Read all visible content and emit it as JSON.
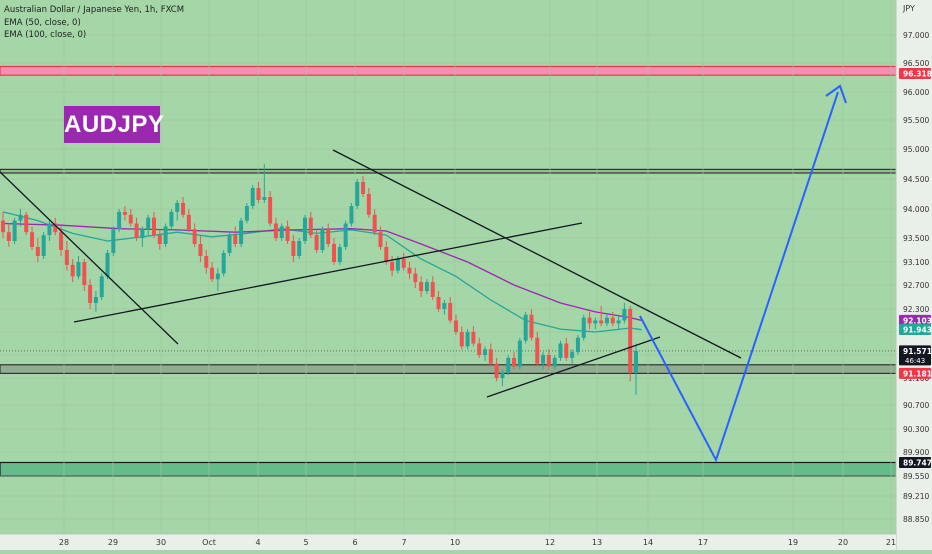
{
  "header": {
    "symbol_line": "Australian Dollar / Japanese Yen, 1h, FXCM",
    "ema1_line": "EMA (50, close, 0)",
    "ema2_line": "EMA (100, close, 0)"
  },
  "badge_text": "AUDJPY",
  "chart_data": {
    "type": "candlestick",
    "currency_label": "JPY",
    "y_ticks": [
      "97.000",
      "96.500",
      "96.000",
      "95.500",
      "95.000",
      "94.500",
      "94.000",
      "93.500",
      "93.100",
      "92.700",
      "92.300",
      "91.900",
      "91.500",
      "91.100",
      "90.700",
      "90.300",
      "89.900",
      "89.550",
      "89.210",
      "88.850"
    ],
    "x_ticks": [
      "28",
      "29",
      "30",
      "Oct",
      "4",
      "5",
      "6",
      "7",
      "10",
      "12",
      "13",
      "14",
      "17",
      "19",
      "20",
      "21"
    ],
    "price_labels": [
      {
        "text": "96.318",
        "price": 96.318,
        "color": "#f23645"
      },
      {
        "text": "92.103",
        "price": 92.103,
        "color": "#9c27b0"
      },
      {
        "text": "91.943",
        "price": 91.943,
        "color": "#26a69a"
      },
      {
        "text": "91.571",
        "sub": "46:43",
        "price": 91.571,
        "color": "#131722"
      },
      {
        "text": "91.181",
        "price": 91.181,
        "color": "#f23645"
      },
      {
        "text": "89.747",
        "price": 89.747,
        "color": "#131722"
      }
    ],
    "zones": [
      {
        "name": "resistance",
        "from": 96.29,
        "to": 96.44,
        "color": "#f48fb1",
        "border": "#f23645"
      },
      {
        "name": "upper-range",
        "from": 94.6,
        "to": 94.66,
        "color": "#8fbf8f",
        "border": "#333333"
      },
      {
        "name": "support",
        "from": 91.18,
        "to": 91.33,
        "color": "#8fae8f",
        "border": "#333333"
      },
      {
        "name": "demand",
        "from": 89.55,
        "to": 89.747,
        "color": "#66bb8a",
        "border": "#131722"
      }
    ],
    "series": [
      {
        "type": "candles",
        "up_color": "#26a69a",
        "down_color": "#ef5350",
        "ohlc": [
          [
            93.8,
            93.95,
            93.5,
            93.6
          ],
          [
            93.6,
            93.75,
            93.35,
            93.45
          ],
          [
            93.45,
            93.85,
            93.4,
            93.8
          ],
          [
            93.8,
            94.0,
            93.7,
            93.9
          ],
          [
            93.9,
            93.95,
            93.55,
            93.6
          ],
          [
            93.6,
            93.7,
            93.3,
            93.35
          ],
          [
            93.35,
            93.5,
            93.1,
            93.2
          ],
          [
            93.2,
            93.6,
            93.15,
            93.55
          ],
          [
            93.55,
            93.8,
            93.45,
            93.75
          ],
          [
            93.75,
            93.85,
            93.55,
            93.6
          ],
          [
            93.6,
            93.7,
            93.2,
            93.3
          ],
          [
            93.3,
            93.45,
            92.95,
            93.05
          ],
          [
            93.05,
            93.15,
            92.75,
            92.85
          ],
          [
            92.85,
            93.2,
            92.8,
            93.1
          ],
          [
            93.1,
            93.15,
            92.6,
            92.7
          ],
          [
            92.7,
            92.8,
            92.3,
            92.4
          ],
          [
            92.4,
            92.6,
            92.25,
            92.5
          ],
          [
            92.5,
            92.9,
            92.45,
            92.85
          ],
          [
            92.85,
            93.3,
            92.8,
            93.25
          ],
          [
            93.25,
            93.7,
            93.2,
            93.65
          ],
          [
            93.65,
            94.0,
            93.6,
            93.95
          ],
          [
            93.95,
            94.05,
            93.8,
            93.9
          ],
          [
            93.9,
            94.0,
            93.7,
            93.75
          ],
          [
            93.75,
            93.85,
            93.45,
            93.5
          ],
          [
            93.5,
            93.7,
            93.35,
            93.65
          ],
          [
            93.65,
            93.9,
            93.55,
            93.85
          ],
          [
            93.85,
            93.95,
            93.5,
            93.55
          ],
          [
            93.55,
            93.65,
            93.3,
            93.4
          ],
          [
            93.4,
            93.75,
            93.35,
            93.7
          ],
          [
            93.7,
            94.0,
            93.65,
            93.95
          ],
          [
            93.95,
            94.15,
            93.8,
            94.1
          ],
          [
            94.1,
            94.2,
            93.85,
            93.9
          ],
          [
            93.9,
            94.0,
            93.6,
            93.65
          ],
          [
            93.65,
            93.75,
            93.35,
            93.4
          ],
          [
            93.4,
            93.55,
            93.1,
            93.2
          ],
          [
            93.2,
            93.3,
            92.9,
            93.0
          ],
          [
            93.0,
            93.1,
            92.75,
            92.8
          ],
          [
            92.8,
            93.0,
            92.6,
            92.9
          ],
          [
            92.9,
            93.3,
            92.85,
            93.25
          ],
          [
            93.25,
            93.6,
            93.2,
            93.55
          ],
          [
            93.55,
            93.7,
            93.35,
            93.4
          ],
          [
            93.4,
            93.85,
            93.35,
            93.8
          ],
          [
            93.8,
            94.1,
            93.75,
            94.05
          ],
          [
            94.05,
            94.4,
            94.0,
            94.35
          ],
          [
            94.35,
            94.45,
            94.1,
            94.15
          ],
          [
            94.15,
            94.75,
            94.1,
            94.2
          ],
          [
            94.2,
            94.3,
            93.7,
            93.75
          ],
          [
            93.75,
            93.85,
            93.45,
            93.5
          ],
          [
            93.5,
            93.75,
            93.45,
            93.7
          ],
          [
            93.7,
            93.8,
            93.4,
            93.45
          ],
          [
            93.45,
            93.55,
            93.1,
            93.2
          ],
          [
            93.2,
            93.5,
            93.15,
            93.45
          ],
          [
            93.45,
            93.9,
            93.4,
            93.85
          ],
          [
            93.85,
            93.95,
            93.5,
            93.55
          ],
          [
            93.55,
            93.65,
            93.25,
            93.3
          ],
          [
            93.3,
            93.7,
            93.25,
            93.65
          ],
          [
            93.65,
            93.75,
            93.35,
            93.4
          ],
          [
            93.4,
            93.5,
            93.05,
            93.1
          ],
          [
            93.1,
            93.4,
            93.05,
            93.35
          ],
          [
            93.35,
            93.8,
            93.3,
            93.75
          ],
          [
            93.75,
            94.1,
            93.7,
            94.05
          ],
          [
            94.05,
            94.5,
            94.0,
            94.45
          ],
          [
            94.45,
            94.55,
            94.2,
            94.25
          ],
          [
            94.25,
            94.35,
            93.85,
            93.9
          ],
          [
            93.9,
            94.0,
            93.55,
            93.6
          ],
          [
            93.6,
            93.7,
            93.3,
            93.35
          ],
          [
            93.35,
            93.45,
            93.05,
            93.1
          ],
          [
            93.1,
            93.2,
            92.85,
            92.95
          ],
          [
            92.95,
            93.2,
            92.9,
            93.15
          ],
          [
            93.15,
            93.25,
            92.95,
            93.0
          ],
          [
            93.0,
            93.1,
            92.8,
            92.9
          ],
          [
            92.9,
            93.0,
            92.65,
            92.75
          ],
          [
            92.75,
            92.85,
            92.5,
            92.6
          ],
          [
            92.6,
            92.8,
            92.55,
            92.75
          ],
          [
            92.75,
            92.85,
            92.45,
            92.5
          ],
          [
            92.5,
            92.6,
            92.25,
            92.3
          ],
          [
            92.3,
            92.45,
            92.2,
            92.4
          ],
          [
            92.4,
            92.5,
            92.05,
            92.1
          ],
          [
            92.1,
            92.2,
            91.85,
            91.9
          ],
          [
            91.9,
            92.0,
            91.6,
            91.65
          ],
          [
            91.65,
            91.95,
            91.6,
            91.9
          ],
          [
            91.9,
            92.0,
            91.65,
            91.7
          ],
          [
            91.7,
            91.8,
            91.45,
            91.5
          ],
          [
            91.5,
            91.65,
            91.4,
            91.6
          ],
          [
            91.6,
            91.7,
            91.3,
            91.35
          ],
          [
            91.35,
            91.45,
            91.05,
            91.1
          ],
          [
            91.1,
            91.25,
            90.98,
            91.2
          ],
          [
            91.2,
            91.5,
            91.15,
            91.45
          ],
          [
            91.45,
            91.55,
            91.25,
            91.3
          ],
          [
            91.3,
            91.8,
            91.25,
            91.75
          ],
          [
            91.75,
            92.25,
            91.7,
            92.2
          ],
          [
            92.2,
            92.3,
            91.75,
            91.8
          ],
          [
            91.8,
            91.9,
            91.3,
            91.35
          ],
          [
            91.35,
            91.55,
            91.25,
            91.5
          ],
          [
            91.5,
            91.6,
            91.25,
            91.3
          ],
          [
            91.3,
            91.5,
            91.25,
            91.45
          ],
          [
            91.45,
            91.75,
            91.4,
            91.7
          ],
          [
            91.7,
            91.8,
            91.4,
            91.45
          ],
          [
            91.45,
            91.6,
            91.35,
            91.55
          ],
          [
            91.55,
            91.85,
            91.5,
            91.8
          ],
          [
            91.8,
            92.2,
            91.75,
            92.15
          ],
          [
            92.15,
            92.25,
            91.95,
            92.05
          ],
          [
            92.05,
            92.15,
            91.95,
            92.1
          ],
          [
            92.1,
            92.35,
            92.0,
            92.05
          ],
          [
            92.05,
            92.2,
            92.0,
            92.15
          ],
          [
            92.15,
            92.25,
            92.0,
            92.05
          ],
          [
            92.05,
            92.2,
            91.95,
            92.1
          ],
          [
            92.1,
            92.4,
            92.05,
            92.3
          ],
          [
            92.3,
            92.35,
            91.05,
            91.2
          ],
          [
            91.2,
            91.7,
            90.85,
            91.57
          ]
        ]
      },
      {
        "name": "EMA (50, close, 0)",
        "color": "#26a69a",
        "values": [
          [
            0,
            93.95
          ],
          [
            6,
            93.8
          ],
          [
            12,
            93.58
          ],
          [
            18,
            93.45
          ],
          [
            24,
            93.52
          ],
          [
            30,
            93.6
          ],
          [
            36,
            93.52
          ],
          [
            42,
            93.58
          ],
          [
            48,
            93.66
          ],
          [
            54,
            93.58
          ],
          [
            60,
            93.64
          ],
          [
            66,
            93.55
          ],
          [
            72,
            93.15
          ],
          [
            78,
            92.85
          ],
          [
            84,
            92.45
          ],
          [
            90,
            92.1
          ],
          [
            96,
            91.95
          ],
          [
            102,
            91.9
          ],
          [
            108,
            91.97
          ],
          [
            110,
            91.94
          ]
        ]
      },
      {
        "name": "EMA (100, close, 0)",
        "color": "#9c27b0",
        "values": [
          [
            0,
            93.75
          ],
          [
            10,
            93.72
          ],
          [
            20,
            93.66
          ],
          [
            30,
            93.64
          ],
          [
            40,
            93.6
          ],
          [
            50,
            93.64
          ],
          [
            60,
            93.66
          ],
          [
            66,
            93.62
          ],
          [
            72,
            93.4
          ],
          [
            80,
            93.1
          ],
          [
            88,
            92.7
          ],
          [
            96,
            92.4
          ],
          [
            102,
            92.25
          ],
          [
            108,
            92.15
          ],
          [
            110,
            92.1
          ]
        ]
      }
    ]
  }
}
